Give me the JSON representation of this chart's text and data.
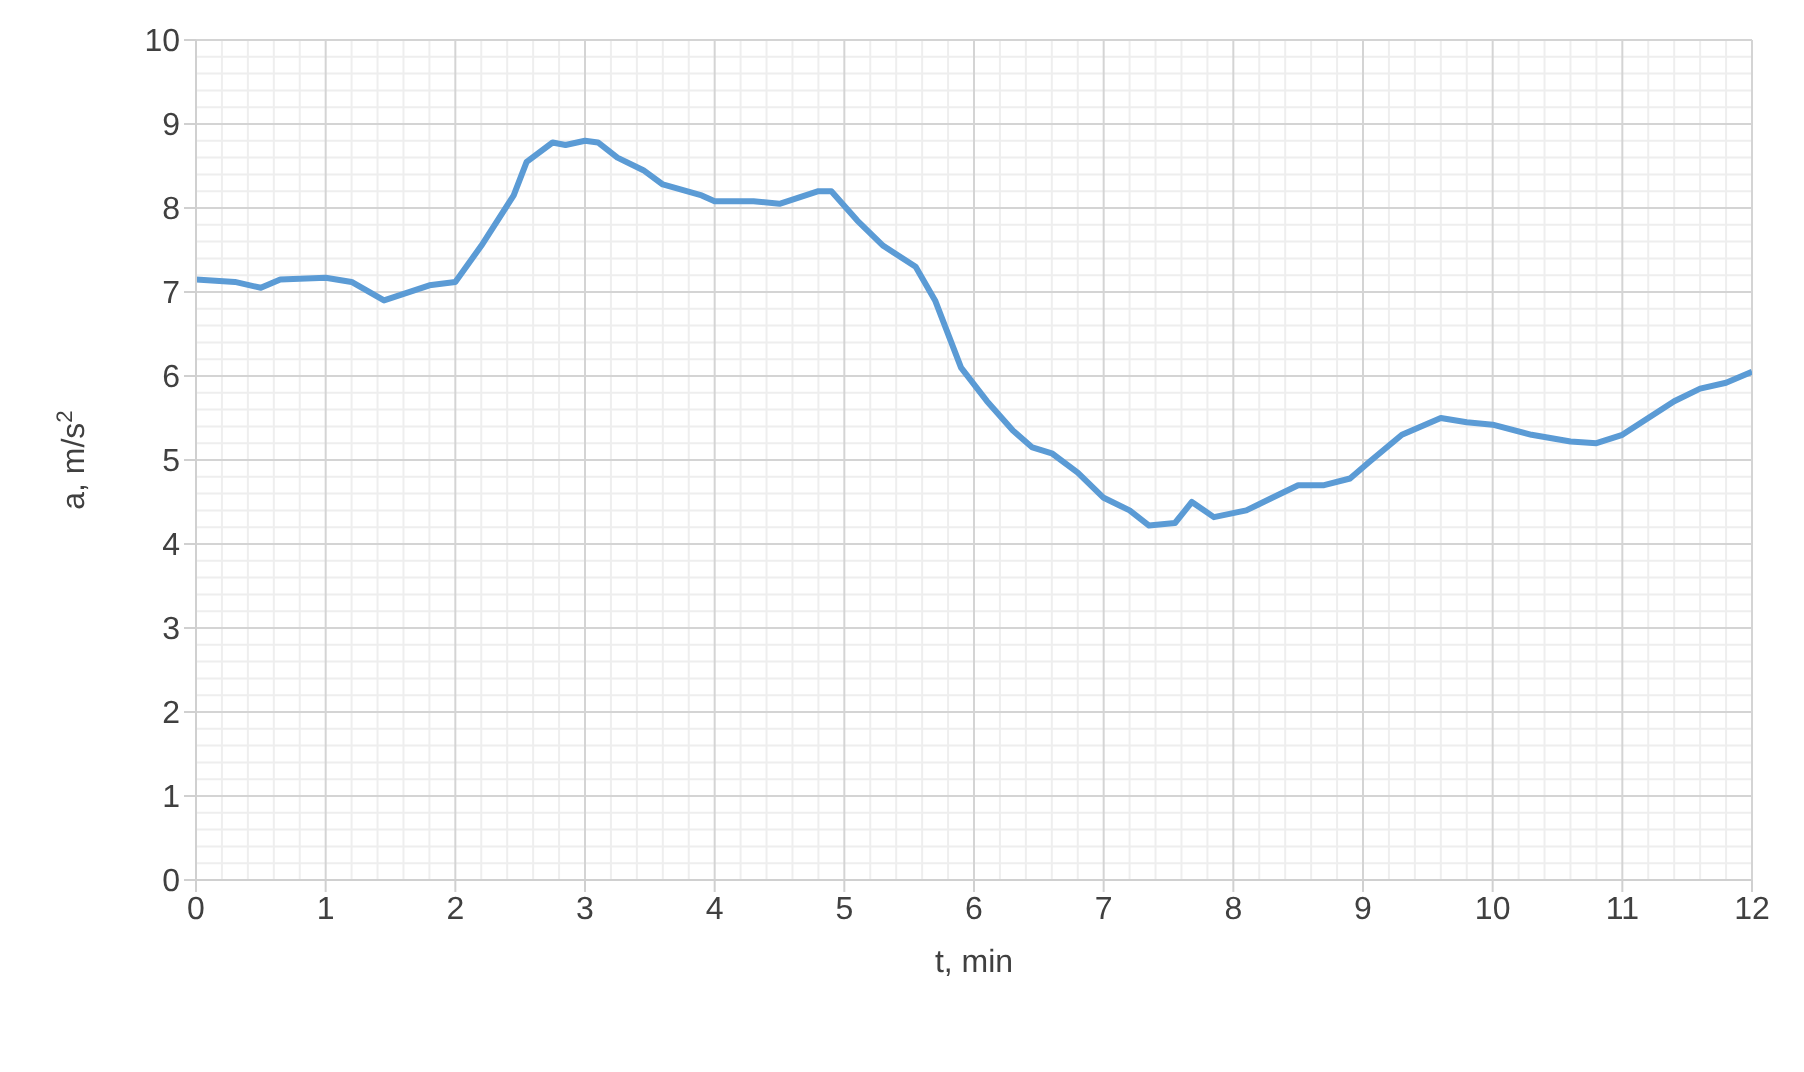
{
  "chart_data": {
    "type": "line",
    "xlabel": "t, min",
    "ylabel": "a, m/s$^{2}$",
    "xlim": [
      0,
      12
    ],
    "xticks": [
      0,
      1,
      2,
      3,
      4,
      5,
      6,
      7,
      8,
      9,
      10,
      11,
      12
    ],
    "ylim": [
      0,
      10
    ],
    "yticks": [
      0,
      1,
      2,
      3,
      4,
      5,
      6,
      7,
      8,
      9,
      10
    ],
    "grid": true,
    "legend": false,
    "marker": "none",
    "line_style": "solid",
    "series": [
      {
        "color": "#5b9bd5",
        "x": [
          0,
          0.3,
          0.5,
          0.65,
          1.0,
          1.2,
          1.45,
          1.8,
          2.0,
          2.2,
          2.45,
          2.55,
          2.75,
          2.85,
          3.0,
          3.1,
          3.25,
          3.45,
          3.6,
          3.9,
          4.0,
          4.3,
          4.5,
          4.8,
          4.9,
          5.1,
          5.3,
          5.55,
          5.7,
          5.9,
          6.1,
          6.3,
          6.45,
          6.6,
          6.8,
          7.0,
          7.2,
          7.35,
          7.55,
          7.68,
          7.85,
          8.1,
          8.3,
          8.5,
          8.7,
          8.9,
          9.05,
          9.3,
          9.6,
          9.8,
          10.0,
          10.3,
          10.6,
          10.8,
          11.0,
          11.2,
          11.4,
          11.6,
          11.8,
          12.0
        ],
        "values": [
          7.15,
          7.12,
          7.05,
          7.15,
          7.17,
          7.12,
          6.9,
          7.08,
          7.12,
          7.55,
          8.15,
          8.55,
          8.78,
          8.75,
          8.8,
          8.78,
          8.6,
          8.45,
          8.28,
          8.15,
          8.08,
          8.08,
          8.05,
          8.2,
          8.2,
          7.85,
          7.55,
          7.3,
          6.9,
          6.1,
          5.7,
          5.35,
          5.15,
          5.08,
          4.85,
          4.55,
          4.4,
          4.22,
          4.25,
          4.5,
          4.32,
          4.4,
          4.55,
          4.7,
          4.7,
          4.78,
          4.98,
          5.3,
          5.5,
          5.45,
          5.42,
          5.3,
          5.22,
          5.2,
          5.3,
          5.5,
          5.7,
          5.85,
          5.92,
          6.05
        ]
      }
    ]
  }
}
